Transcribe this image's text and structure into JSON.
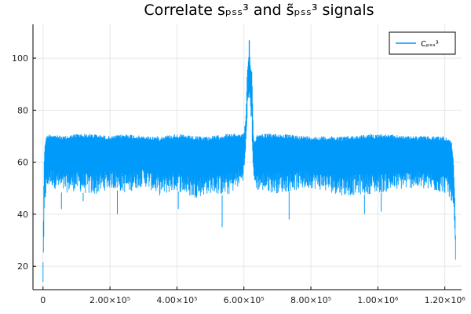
{
  "chart_data": {
    "type": "line",
    "title": "Correlate sₚₛₛ³ and s̃ₚₛₛ³ signals",
    "xlabel": "",
    "ylabel": "",
    "xlim": [
      -30000,
      1250000
    ],
    "ylim": [
      11,
      113
    ],
    "grid": true,
    "legend_position": "top-right",
    "x_ticks": [
      {
        "value": 0,
        "label": "0"
      },
      {
        "value": 200000,
        "label": "2.00×10⁵"
      },
      {
        "value": 400000,
        "label": "4.00×10⁵"
      },
      {
        "value": 600000,
        "label": "6.00×10⁵"
      },
      {
        "value": 800000,
        "label": "8.00×10⁵"
      },
      {
        "value": 1000000,
        "label": "1.00×10⁶"
      },
      {
        "value": 1200000,
        "label": "1.20×10⁶"
      }
    ],
    "y_ticks": [
      {
        "value": 20,
        "label": "20"
      },
      {
        "value": 40,
        "label": "40"
      },
      {
        "value": 60,
        "label": "60"
      },
      {
        "value": 80,
        "label": "80"
      },
      {
        "value": 100,
        "label": "100"
      }
    ],
    "series": [
      {
        "name": "Cₚₛₛ³",
        "color": "#009AFA",
        "x": [
          0,
          2000,
          4000,
          6000,
          10000,
          20000,
          60000,
          100000,
          150000,
          200000,
          250000,
          300000,
          350000,
          400000,
          450000,
          500000,
          550000,
          590000,
          600000,
          606000,
          610000,
          614000,
          616000,
          618000,
          620000,
          624000,
          628000,
          632000,
          640000,
          700000,
          800000,
          900000,
          1000000,
          1100000,
          1150000,
          1200000,
          1220000,
          1226000,
          1230000,
          1233000
        ],
        "y_upper": [
          22,
          50,
          64,
          68,
          70,
          71,
          70,
          71,
          71,
          70,
          71,
          70,
          70,
          71,
          70,
          70,
          71,
          71,
          71,
          78,
          95,
          100,
          110,
          99,
          97,
          95,
          71,
          68,
          71,
          71,
          70,
          70,
          71,
          70,
          70,
          70,
          68,
          60,
          45,
          25
        ],
        "y_lower": [
          13,
          22,
          38,
          44,
          48,
          51,
          48,
          49,
          47,
          50,
          48,
          51,
          47,
          49,
          46,
          48,
          47,
          51,
          54,
          65,
          78,
          82,
          83,
          84,
          80,
          70,
          55,
          50,
          49,
          48,
          50,
          47,
          48,
          50,
          49,
          48,
          45,
          40,
          30,
          15
        ],
        "notable_lows": [
          {
            "x": 55000,
            "y": 42
          },
          {
            "x": 120000,
            "y": 45
          },
          {
            "x": 222000,
            "y": 40
          },
          {
            "x": 404000,
            "y": 42
          },
          {
            "x": 535000,
            "y": 35
          },
          {
            "x": 735000,
            "y": 38
          },
          {
            "x": 960000,
            "y": 40
          },
          {
            "x": 1010000,
            "y": 41
          }
        ]
      }
    ]
  }
}
